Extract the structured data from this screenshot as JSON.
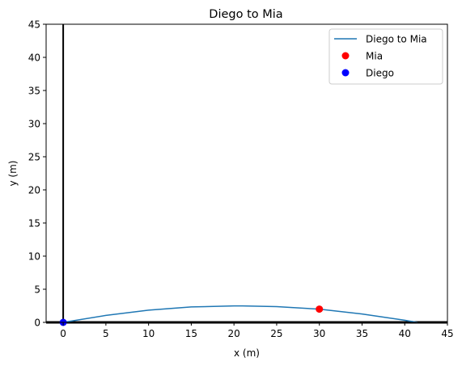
{
  "chart_data": {
    "type": "line",
    "title": "Diego to Mia",
    "xlabel": "x (m)",
    "ylabel": "y (m)",
    "xlim": [
      -2,
      45
    ],
    "ylim": [
      0,
      45
    ],
    "xticks": [
      0,
      5,
      10,
      15,
      20,
      25,
      30,
      35,
      40,
      45
    ],
    "yticks": [
      0,
      5,
      10,
      15,
      20,
      25,
      30,
      35,
      40,
      45
    ],
    "grid": false,
    "reference_lines": [
      {
        "orientation": "vertical",
        "x": 0,
        "color": "#000000"
      },
      {
        "orientation": "horizontal",
        "y": 0,
        "color": "#000000"
      }
    ],
    "series": [
      {
        "name": "Diego to Mia",
        "type": "line",
        "color": "#1f77b4",
        "x": [
          0,
          5,
          10,
          15,
          20,
          21,
          25,
          30,
          35,
          40,
          41.5
        ],
        "y": [
          0,
          1.05,
          1.85,
          2.33,
          2.48,
          2.49,
          2.38,
          1.99,
          1.27,
          0.32,
          0
        ]
      },
      {
        "name": "Mia",
        "type": "scatter",
        "color": "#ff0000",
        "x": [
          30
        ],
        "y": [
          2
        ]
      },
      {
        "name": "Diego",
        "type": "scatter",
        "color": "#0000ff",
        "x": [
          0
        ],
        "y": [
          0
        ]
      }
    ],
    "legend": {
      "position": "top-right",
      "entries": [
        "Diego to Mia",
        "Mia",
        "Diego"
      ]
    }
  }
}
